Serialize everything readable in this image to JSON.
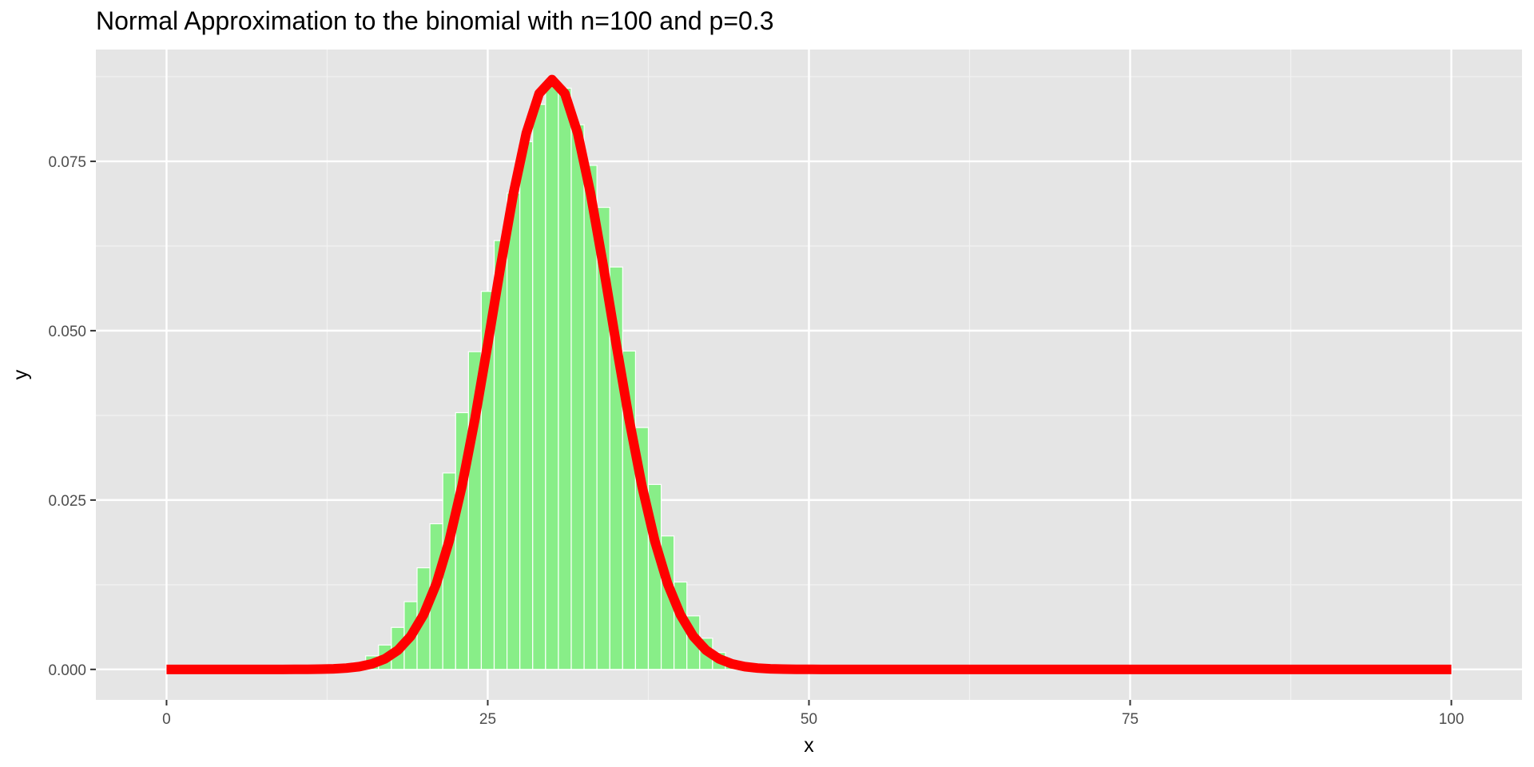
{
  "chart_data": {
    "type": "bar",
    "title": "Normal Approximation to the binomial with n=100 and p=0.3",
    "xlabel": "x",
    "ylabel": "y",
    "xlim": [
      -5.5,
      105.5
    ],
    "ylim": [
      -0.0045,
      0.0915
    ],
    "x_ticks": [
      0,
      25,
      50,
      75,
      100
    ],
    "x_tick_labels": [
      "0",
      "25",
      "50",
      "75",
      "100"
    ],
    "y_ticks": [
      0,
      0.025,
      0.05,
      0.075
    ],
    "y_tick_labels": [
      "0.000",
      "0.025",
      "0.050",
      "0.075"
    ],
    "grid": true,
    "series": [
      {
        "type": "bar",
        "color": "#88ee88",
        "x": [
          13,
          14,
          15,
          16,
          17,
          18,
          19,
          20,
          21,
          22,
          23,
          24,
          25,
          26,
          27,
          28,
          29,
          30,
          31,
          32,
          33,
          34,
          35,
          36,
          37,
          38,
          39,
          40,
          41,
          42,
          43,
          44,
          45,
          46,
          47,
          48
        ],
        "values": [
          0.0002,
          0.0004,
          0.001,
          0.002,
          0.0036,
          0.0062,
          0.01,
          0.015,
          0.0215,
          0.029,
          0.0379,
          0.0469,
          0.0558,
          0.0633,
          0.0703,
          0.0779,
          0.0834,
          0.0868,
          0.0858,
          0.0804,
          0.0744,
          0.0682,
          0.0594,
          0.047,
          0.0357,
          0.0273,
          0.0197,
          0.0129,
          0.0079,
          0.0046,
          0.0025,
          0.0013,
          0.0006,
          0.0003,
          0.0001,
          4e-05
        ]
      },
      {
        "type": "line",
        "color": "#ff0000",
        "mean": 30,
        "sd": 4.5826,
        "x_range": [
          0,
          100
        ]
      }
    ]
  }
}
